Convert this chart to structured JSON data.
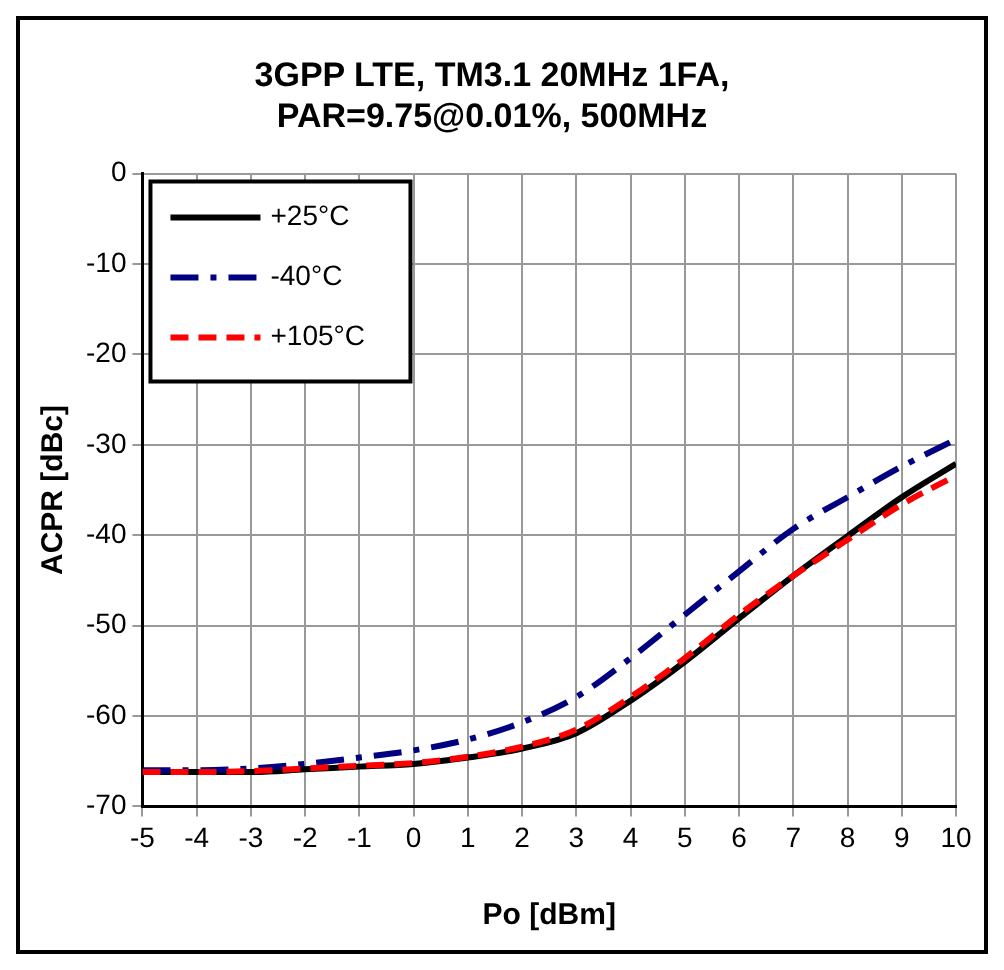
{
  "chart_data": {
    "type": "line",
    "title": "3GPP LTE, TM3.1 20MHz 1FA, PAR=9.75@0.01%, 500MHz",
    "xlabel": "Po [dBm]",
    "ylabel": "ACPR [dBc]",
    "x": [
      -5,
      -4,
      -3,
      -2,
      -1,
      0,
      1,
      2,
      3,
      4,
      5,
      6,
      7,
      8,
      9,
      10
    ],
    "series": [
      {
        "name": "+25°C",
        "color": "#000000",
        "line_style": "solid",
        "values": [
          -66.2,
          -66.2,
          -66.2,
          -65.9,
          -65.6,
          -65.3,
          -64.6,
          -63.6,
          -61.9,
          -58.3,
          -54,
          -49.2,
          -44.5,
          -40.1,
          -35.8,
          -32.1
        ]
      },
      {
        "name": "-40°C",
        "color": "#000080",
        "line_style": "dashed",
        "values": [
          -66,
          -66,
          -65.8,
          -65.3,
          -64.6,
          -63.8,
          -62.6,
          -60.7,
          -57.9,
          -53.6,
          -48.8,
          -44,
          -39.3,
          -35.8,
          -32.4,
          -29.4
        ]
      },
      {
        "name": "+105°C",
        "color": "#ff0000",
        "line_style": "dashed",
        "values": [
          -66.2,
          -66.2,
          -66.1,
          -65.8,
          -65.5,
          -65.2,
          -64.5,
          -63.4,
          -61.5,
          -57.9,
          -53.6,
          -48.8,
          -44.5,
          -40.5,
          -36.6,
          -33.4
        ]
      }
    ],
    "xlim": [
      -5,
      10
    ],
    "xticks": [
      -5,
      -4,
      -3,
      -2,
      -1,
      0,
      1,
      2,
      3,
      4,
      5,
      6,
      7,
      8,
      9,
      10
    ],
    "ylim": [
      -70,
      0
    ],
    "yticks": [
      -70,
      -60,
      -50,
      -40,
      -30,
      -20,
      -10,
      0
    ],
    "grid": true,
    "legend": "top left",
    "marker": "none"
  }
}
